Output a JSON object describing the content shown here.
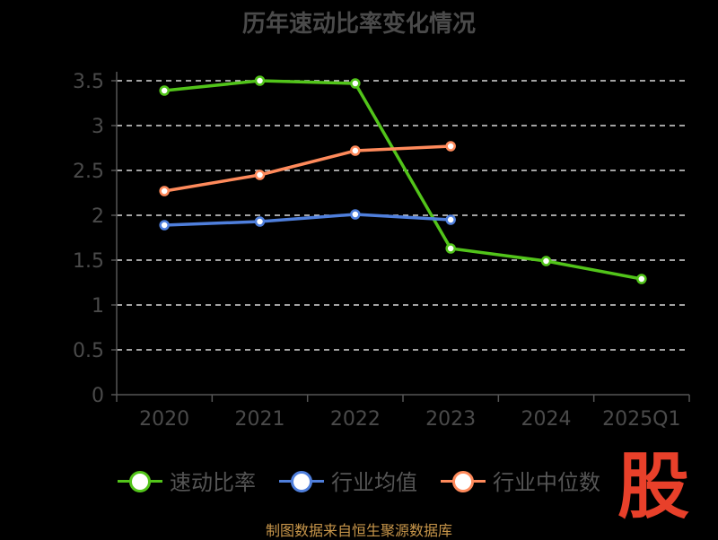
{
  "chart_data": {
    "type": "line",
    "title": "历年速动比率变化情况",
    "categories": [
      "2020",
      "2021",
      "2022",
      "2023",
      "2024",
      "2025Q1"
    ],
    "ylim": [
      0,
      3.5
    ],
    "yticks": [
      "0",
      "0.5",
      "1",
      "1.5",
      "2",
      "2.5",
      "3",
      "3.5"
    ],
    "grid": true,
    "legend_position": "bottom",
    "series": [
      {
        "name": "速动比率",
        "color": "#52c41a",
        "values": [
          3.39,
          3.5,
          3.47,
          1.63,
          1.49,
          1.29
        ]
      },
      {
        "name": "行业均值",
        "color": "#4f7fdc",
        "values": [
          1.89,
          1.93,
          2.01,
          1.95,
          null,
          null
        ]
      },
      {
        "name": "行业中位数",
        "color": "#ff8a5b",
        "values": [
          2.27,
          2.45,
          2.72,
          2.77,
          null,
          null
        ]
      }
    ]
  },
  "source": "制图数据来自恒生聚源数据库",
  "logo_text": "股"
}
